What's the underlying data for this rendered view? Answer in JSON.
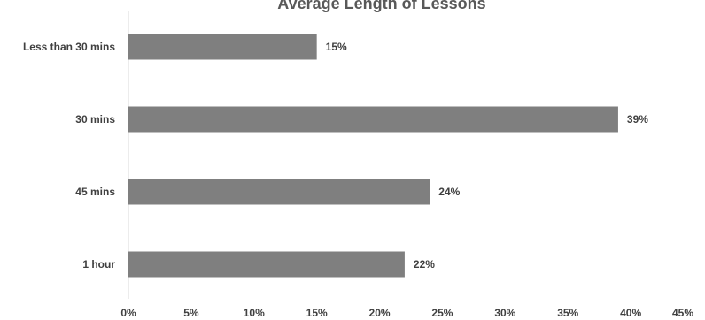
{
  "chart_data": {
    "type": "bar",
    "orientation": "horizontal",
    "title": "Average Length of Lessons",
    "xlabel": "",
    "ylabel": "",
    "categories": [
      "Less than 30 mins",
      "30 mins",
      "45 mins",
      "1 hour"
    ],
    "values": [
      15,
      39,
      24,
      22
    ],
    "data_labels": [
      "15%",
      "39%",
      "24%",
      "22%"
    ],
    "xlim": [
      0,
      45
    ],
    "x_ticks": [
      0,
      5,
      10,
      15,
      20,
      25,
      30,
      35,
      40,
      45
    ],
    "x_tick_labels": [
      "0%",
      "5%",
      "10%",
      "15%",
      "20%",
      "25%",
      "30%",
      "35%",
      "40%",
      "45%"
    ],
    "grid": false,
    "legend": "none",
    "colors": {
      "bar": "#7f7f7f",
      "axis": "#d9d9d9",
      "text": "#404040",
      "title": "#595959"
    }
  }
}
